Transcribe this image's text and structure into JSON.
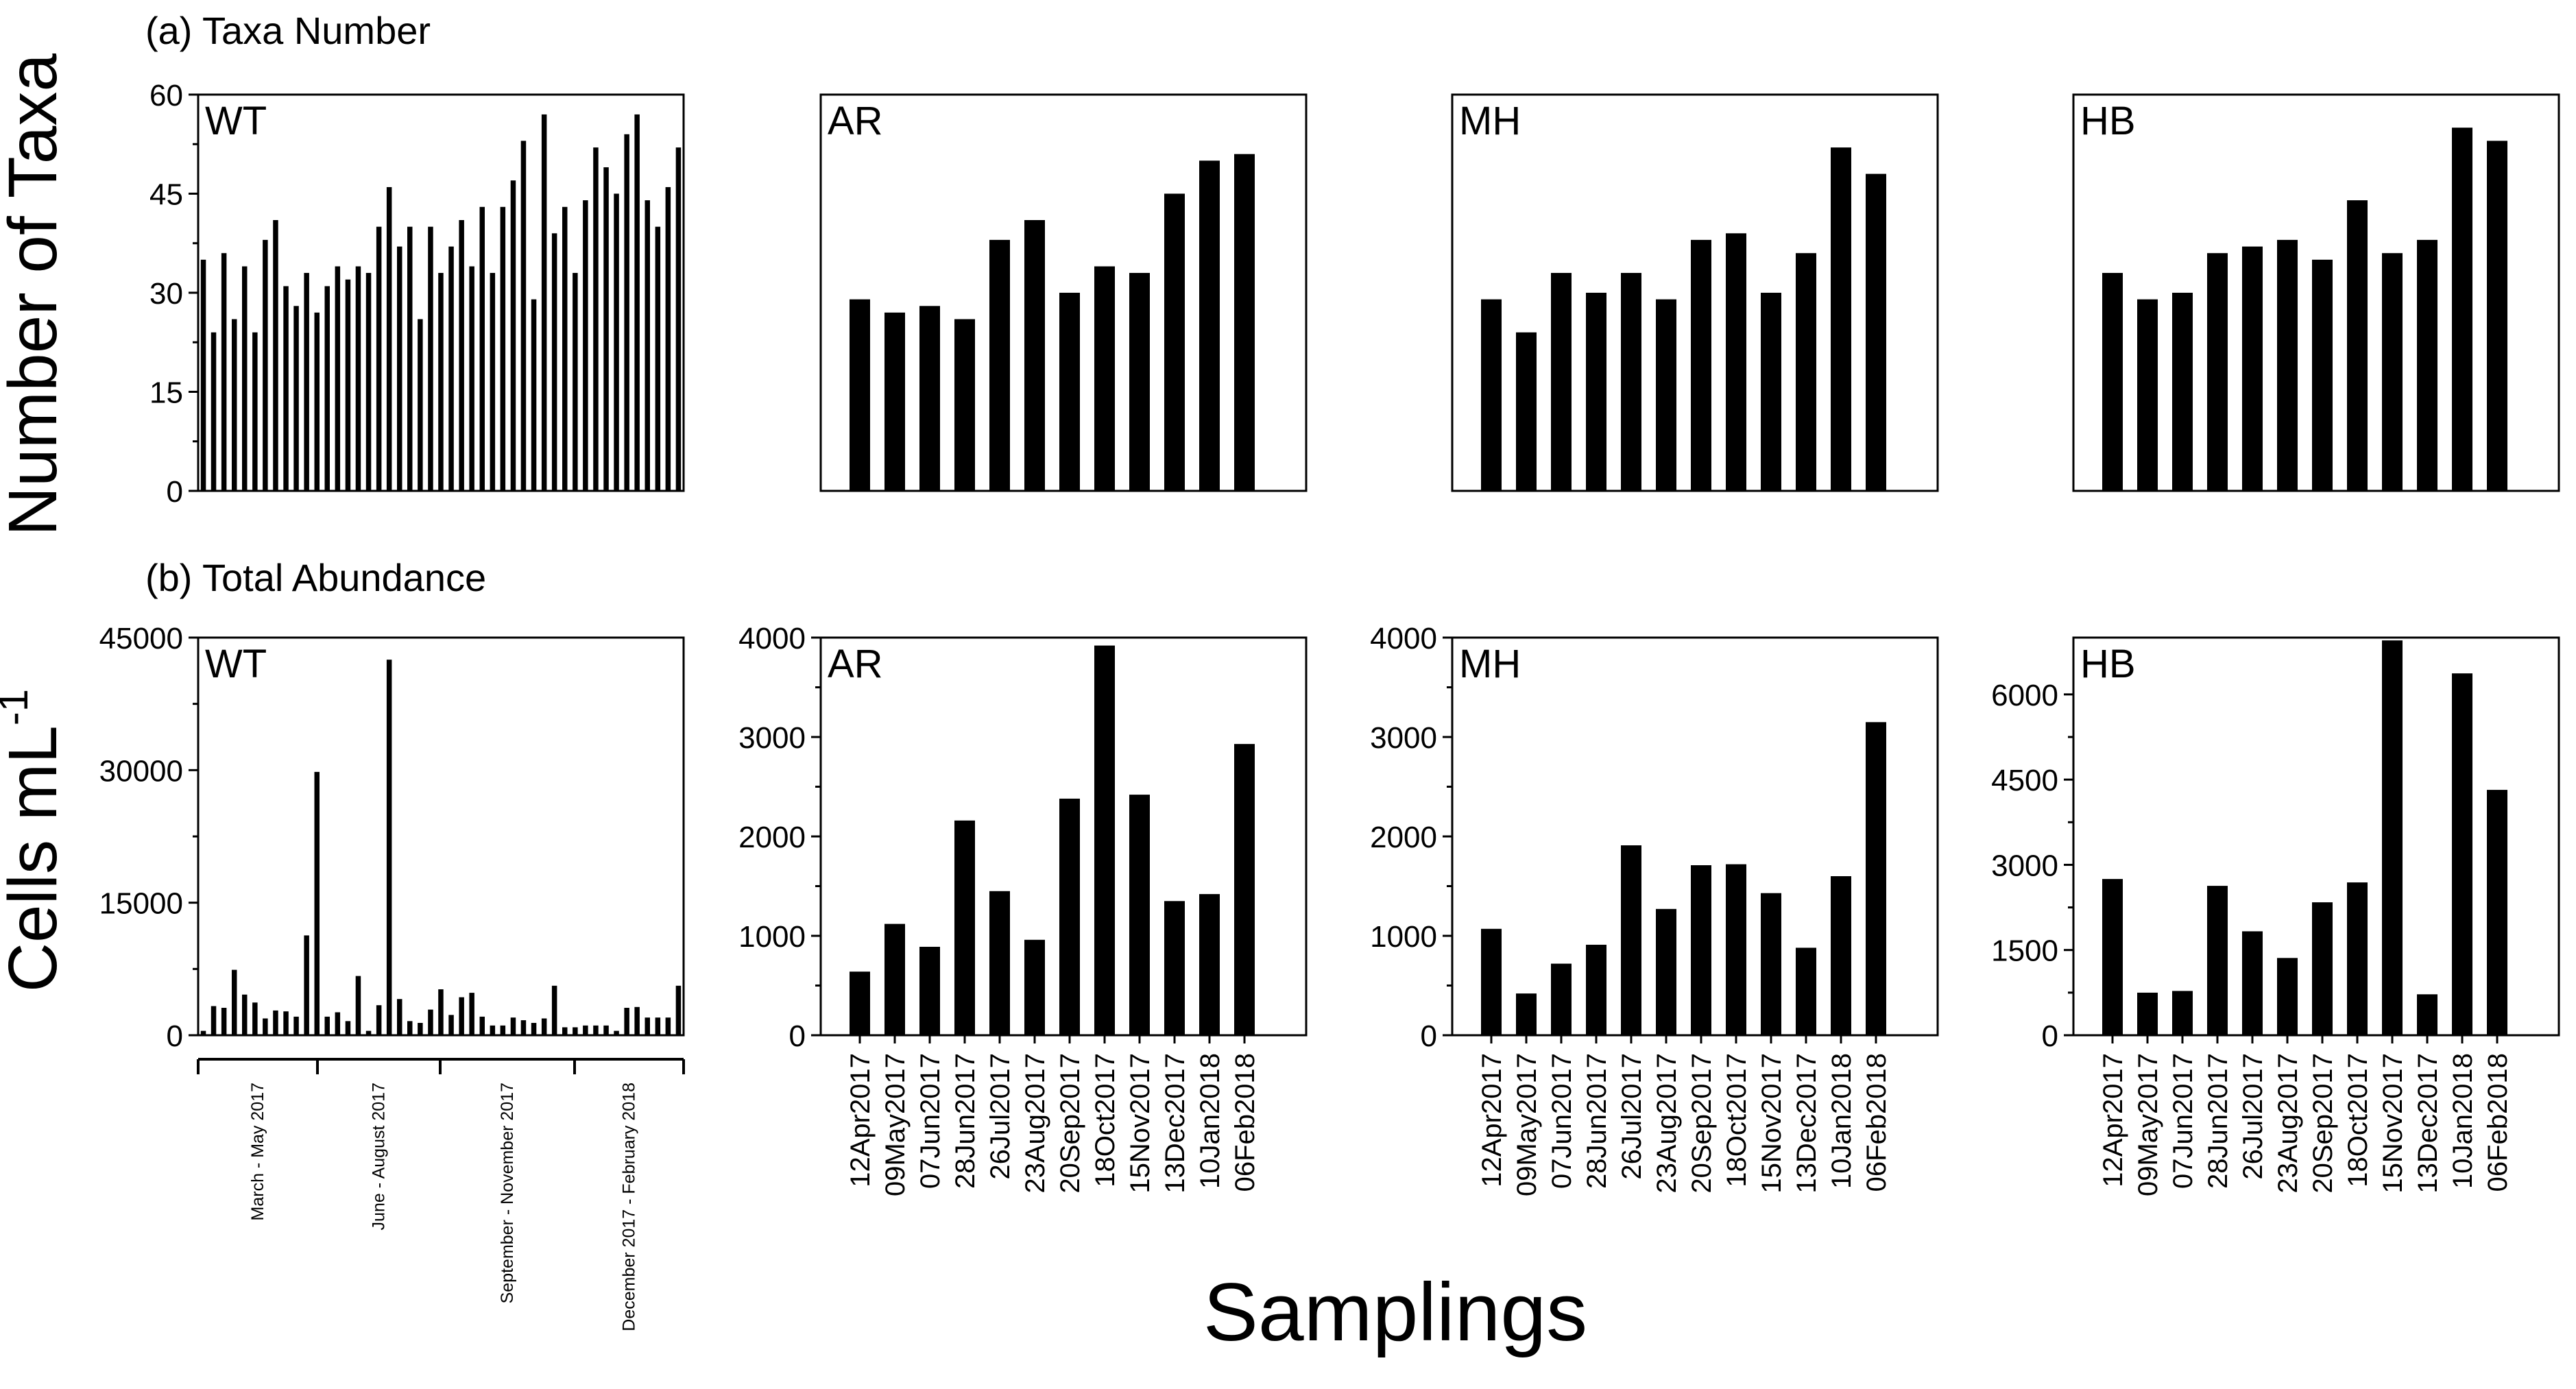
{
  "figure": {
    "row_a_title": "(a) Taxa Number",
    "row_b_title": "(b) Total Abundance",
    "y_label_a": "Number of Taxa",
    "y_label_b_main": "Cells mL",
    "y_label_b_sup": "-1",
    "x_label": "Samplings"
  },
  "chart_data": [
    {
      "type": "bar",
      "row": "a",
      "panel": "WT",
      "title": "WT",
      "xlabel": "",
      "ylabel": "Number of Taxa",
      "ylim": [
        0,
        60
      ],
      "yticks": [
        "0",
        "15",
        "30",
        "45",
        "60"
      ],
      "yticks_values": [
        0,
        15,
        30,
        45,
        60
      ],
      "values": [
        35,
        24,
        36,
        26,
        34,
        24,
        38,
        41,
        31,
        28,
        33,
        27,
        31,
        34,
        32,
        34,
        33,
        40,
        46,
        37,
        40,
        26,
        40,
        33,
        37,
        41,
        34,
        43,
        33,
        43,
        47,
        53,
        29,
        57,
        39,
        43,
        33,
        44,
        52,
        49,
        45,
        54,
        57,
        44,
        40,
        46,
        52
      ],
      "period_labels": [
        "March - May 2017",
        "June - August 2017",
        "September - November 2017",
        "December 2017 - February 2018"
      ]
    },
    {
      "type": "bar",
      "row": "a",
      "panel": "AR",
      "title": "AR",
      "ylim": [
        0,
        60
      ],
      "categories": [
        "12Apr2017",
        "09May2017",
        "07Jun2017",
        "28Jun2017",
        "26Jul2017",
        "23Aug2017",
        "20Sep2017",
        "18Oct2017",
        "15Nov2017",
        "13Dec2017",
        "10Jan2018",
        "06Feb2018"
      ],
      "values": [
        29,
        27,
        28,
        26,
        38,
        41,
        30,
        34,
        33,
        45,
        50,
        51
      ]
    },
    {
      "type": "bar",
      "row": "a",
      "panel": "MH",
      "title": "MH",
      "ylim": [
        0,
        60
      ],
      "categories": [
        "12Apr2017",
        "09May2017",
        "07Jun2017",
        "28Jun2017",
        "26Jul2017",
        "23Aug2017",
        "20Sep2017",
        "18Oct2017",
        "15Nov2017",
        "13Dec2017",
        "10Jan2018",
        "06Feb2018"
      ],
      "values": [
        29,
        24,
        33,
        30,
        33,
        29,
        38,
        39,
        30,
        36,
        52,
        48
      ]
    },
    {
      "type": "bar",
      "row": "a",
      "panel": "HB",
      "title": "HB",
      "ylim": [
        0,
        60
      ],
      "categories": [
        "12Apr2017",
        "09May2017",
        "07Jun2017",
        "28Jun2017",
        "26Jul2017",
        "23Aug2017",
        "20Sep2017",
        "18Oct2017",
        "15Nov2017",
        "13Dec2017",
        "10Jan2018",
        "06Feb2018"
      ],
      "values": [
        33,
        29,
        30,
        36,
        37,
        38,
        35,
        44,
        36,
        38,
        55,
        53
      ]
    },
    {
      "type": "bar",
      "row": "b",
      "panel": "WT",
      "title": "WT",
      "ylabel": "Cells mL-1",
      "ylim": [
        0,
        45000
      ],
      "yticks": [
        "0",
        "15000",
        "30000",
        "45000"
      ],
      "yticks_values": [
        0,
        15000,
        30000,
        45000
      ],
      "values": [
        500,
        3300,
        3100,
        7400,
        4600,
        3700,
        1900,
        2800,
        2700,
        2100,
        11300,
        29800,
        2100,
        2600,
        1600,
        6700,
        500,
        3400,
        42500,
        4100,
        1600,
        1400,
        2900,
        5200,
        2300,
        4300,
        4800,
        2100,
        1100,
        1100,
        2000,
        1700,
        1400,
        1900,
        5600,
        900,
        900,
        1100,
        1100,
        1100,
        500,
        3100,
        3200,
        2000,
        2000,
        2000,
        5600
      ],
      "period_labels": [
        "March - May 2017",
        "June - August 2017",
        "September - November 2017",
        "December 2017 - February 2018"
      ]
    },
    {
      "type": "bar",
      "row": "b",
      "panel": "AR",
      "title": "AR",
      "ylim": [
        0,
        4000
      ],
      "yticks": [
        "0",
        "1000",
        "2000",
        "3000",
        "4000"
      ],
      "yticks_values": [
        0,
        1000,
        2000,
        3000,
        4000
      ],
      "categories": [
        "12Apr2017",
        "09May2017",
        "07Jun2017",
        "28Jun2017",
        "26Jul2017",
        "23Aug2017",
        "20Sep2017",
        "18Oct2017",
        "15Nov2017",
        "13Dec2017",
        "10Jan2018",
        "06Feb2018"
      ],
      "values": [
        640,
        1120,
        890,
        2160,
        1450,
        960,
        2380,
        3920,
        2420,
        1350,
        1420,
        2930
      ]
    },
    {
      "type": "bar",
      "row": "b",
      "panel": "MH",
      "title": "MH",
      "ylim": [
        0,
        4000
      ],
      "yticks": [
        "0",
        "1000",
        "2000",
        "3000",
        "4000"
      ],
      "yticks_values": [
        0,
        1000,
        2000,
        3000,
        4000
      ],
      "categories": [
        "12Apr2017",
        "09May2017",
        "07Jun2017",
        "28Jun2017",
        "26Jul2017",
        "23Aug2017",
        "20Sep2017",
        "18Oct2017",
        "15Nov2017",
        "13Dec2017",
        "10Jan2018",
        "06Feb2018"
      ],
      "values": [
        1070,
        420,
        720,
        910,
        1910,
        1270,
        1710,
        1720,
        1430,
        880,
        1600,
        3150
      ]
    },
    {
      "type": "bar",
      "row": "b",
      "panel": "HB",
      "title": "HB",
      "ylim": [
        0,
        7000
      ],
      "yticks": [
        "0",
        "1500",
        "3000",
        "4500",
        "6000"
      ],
      "yticks_values": [
        0,
        1500,
        3000,
        4500,
        6000
      ],
      "categories": [
        "12Apr2017",
        "09May2017",
        "07Jun2017",
        "28Jun2017",
        "26Jul2017",
        "23Aug2017",
        "20Sep2017",
        "18Oct2017",
        "15Nov2017",
        "13Dec2017",
        "10Jan2018",
        "06Feb2018"
      ],
      "values": [
        2750,
        750,
        780,
        2630,
        1830,
        1360,
        2340,
        2690,
        6950,
        720,
        6370,
        4320
      ]
    }
  ]
}
